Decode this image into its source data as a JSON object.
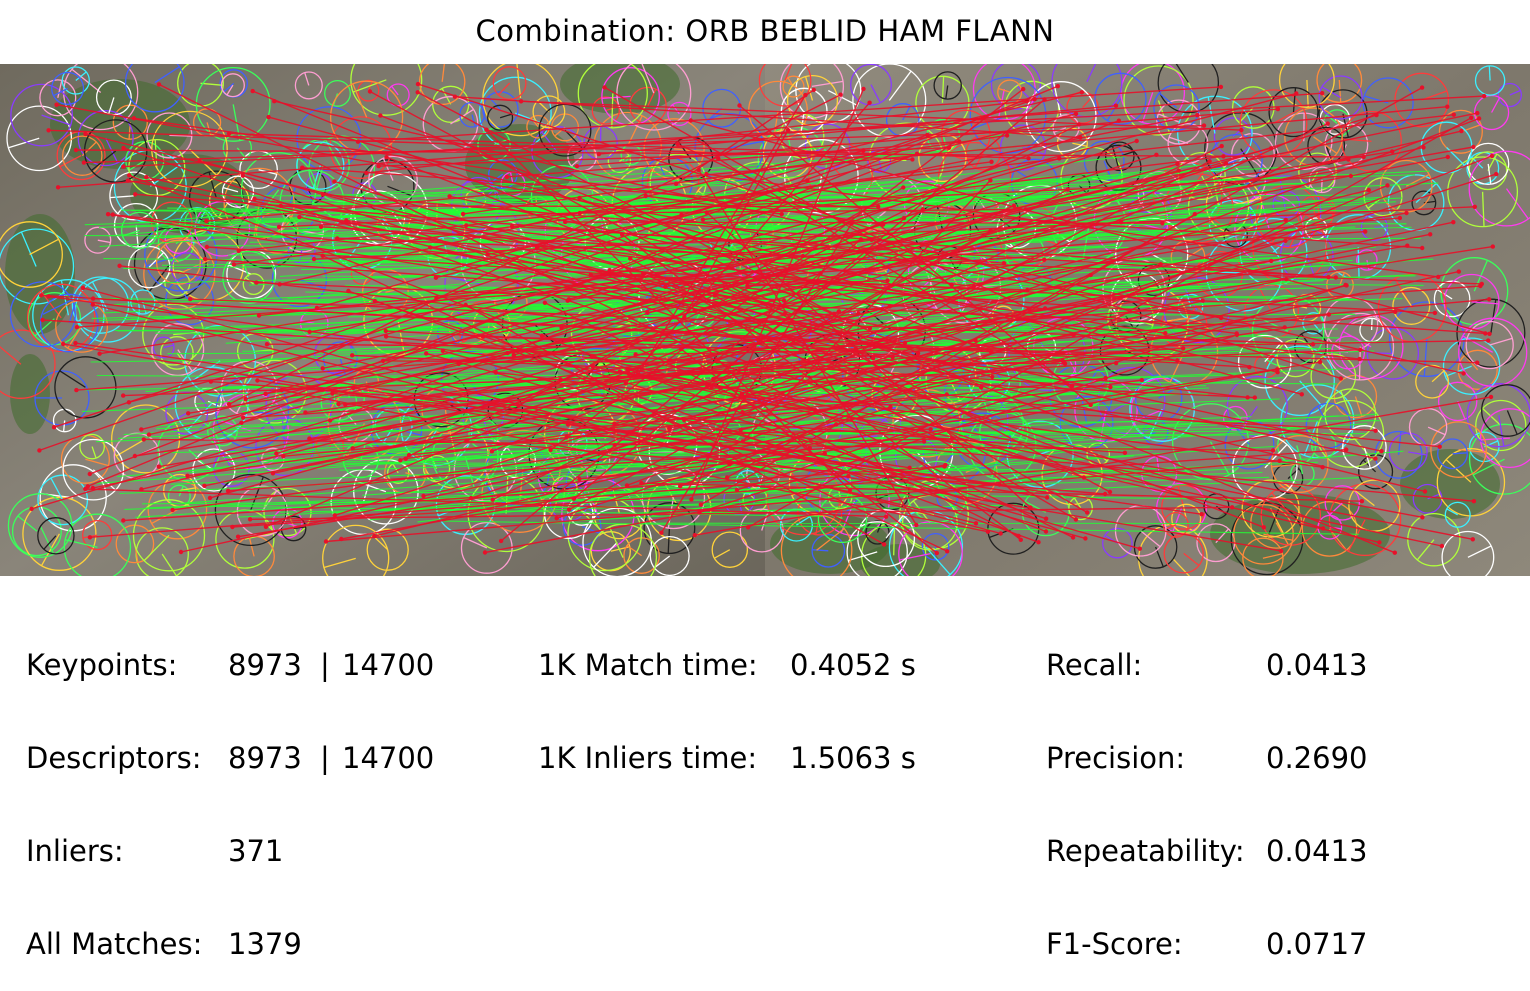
{
  "title": "Combination: ORB BEBLID HAM FLANN",
  "stats_left": {
    "keypoints_label": "Keypoints:",
    "keypoints_left": "8973",
    "keypoints_right": "14700",
    "descriptors_label": "Descriptors:",
    "descriptors_left": "8973",
    "descriptors_right": "14700",
    "separator": "|",
    "inliers_label": "Inliers:",
    "inliers_value": "371",
    "all_matches_label": "All Matches:",
    "all_matches_value": "1379"
  },
  "stats_middle": {
    "match_time_label": "1K Match time:",
    "match_time_value": "0.4052 s",
    "inliers_time_label": "1K Inliers time:",
    "inliers_time_value": "1.5063 s"
  },
  "stats_right": {
    "recall_label": "Recall:",
    "recall_value": "0.0413",
    "precision_label": "Precision:",
    "precision_value": "0.2690",
    "repeatability_label": "Repeatability:",
    "repeatability_value": "0.0413",
    "f1_label": "F1-Score:",
    "f1_value": "0.0717"
  },
  "colors": {
    "inlier_line": "#22ff33",
    "outlier_line": "#e8102a",
    "bark_left": "#7d786d",
    "bark_right": "#8a8578",
    "foliage": "#3f6b2c"
  }
}
